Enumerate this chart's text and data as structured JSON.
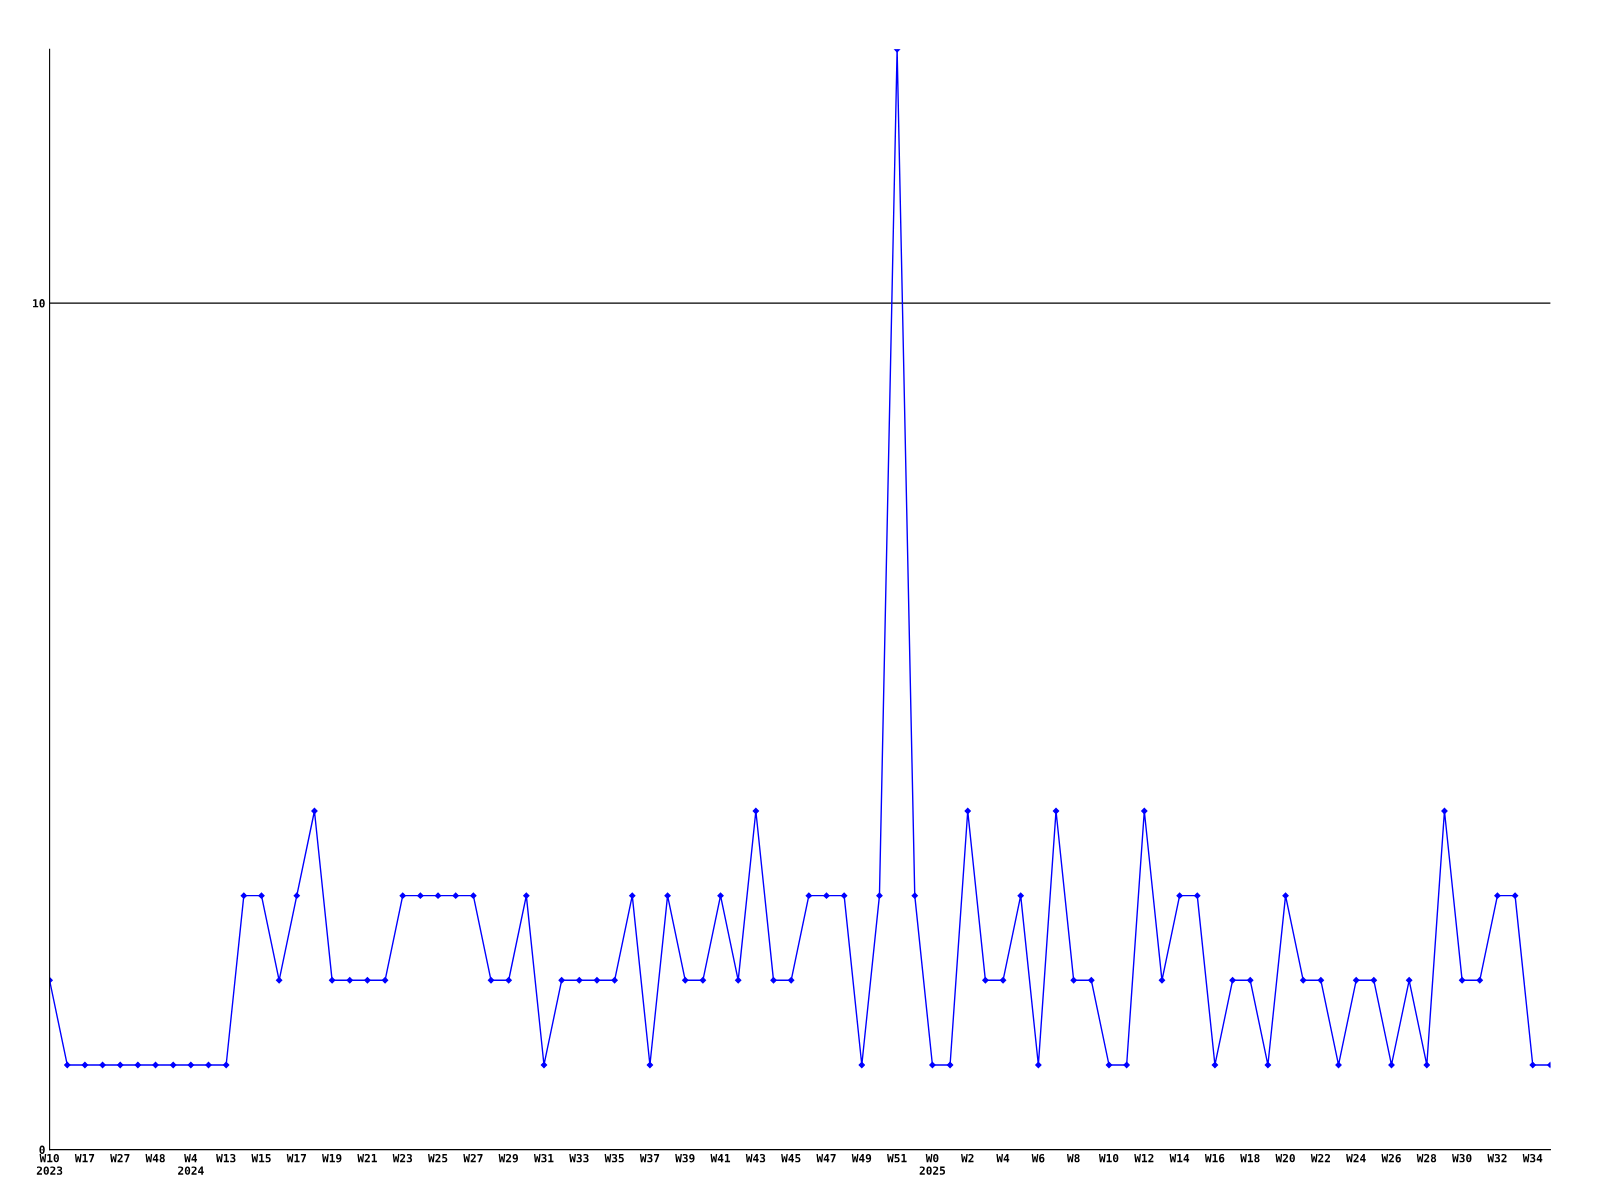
{
  "chart_data": {
    "type": "line",
    "categories": [
      "W10\n2023",
      null,
      "W17",
      null,
      "W27",
      null,
      "W48",
      null,
      "W4\n2024",
      null,
      "W13",
      null,
      "W15",
      null,
      "W17",
      null,
      "W19",
      null,
      "W21",
      null,
      "W23",
      null,
      "W25",
      null,
      "W27",
      null,
      "W29",
      null,
      "W31",
      null,
      "W33",
      null,
      "W35",
      null,
      "W37",
      null,
      "W39",
      null,
      "W41",
      null,
      "W43",
      null,
      "W45",
      null,
      "W47",
      null,
      "W49",
      null,
      "W51",
      null,
      "W0\n2025",
      null,
      "W2",
      null,
      "W4",
      null,
      "W6",
      null,
      "W8",
      null,
      "W10",
      null,
      "W12",
      null,
      "W14",
      null,
      "W16",
      null,
      "W18",
      null,
      "W20",
      null,
      "W22",
      null,
      "W24",
      null,
      "W26",
      null,
      "W28",
      null,
      "W30",
      null,
      "W32",
      null,
      "W34",
      null
    ],
    "series": [
      {
        "color": "#0000ff",
        "values": [
          2,
          1,
          1,
          1,
          1,
          1,
          1,
          1,
          1,
          1,
          1,
          3,
          3,
          2,
          3,
          4,
          2,
          2,
          2,
          2,
          3,
          3,
          3,
          3,
          3,
          2,
          2,
          3,
          1,
          2,
          2,
          2,
          2,
          3,
          1,
          3,
          2,
          2,
          3,
          2,
          4,
          2,
          2,
          3,
          3,
          3,
          1,
          3,
          13,
          3,
          1,
          1,
          4,
          2,
          2,
          3,
          1,
          4,
          2,
          2,
          1,
          1,
          4,
          2,
          3,
          3,
          1,
          2,
          2,
          1,
          3,
          2,
          2,
          1,
          2,
          2,
          1,
          2,
          1,
          4,
          2,
          2,
          3,
          3,
          1,
          1
        ]
      }
    ],
    "ylim": [
      0,
      13
    ],
    "yticks": [
      0,
      10
    ],
    "grid": "y",
    "marker": "diamond",
    "line_style": "solid"
  }
}
